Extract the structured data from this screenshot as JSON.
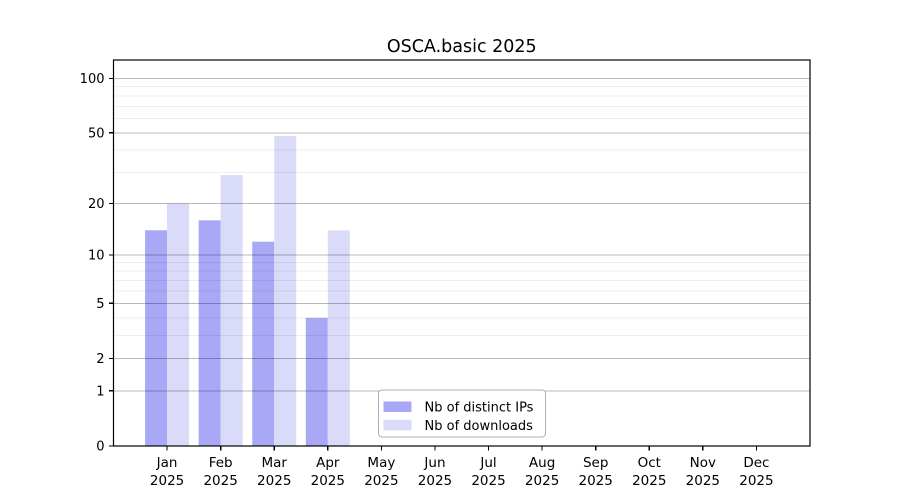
{
  "chart_data": {
    "type": "bar",
    "title": "OSCA.basic 2025",
    "categories": [
      "Jan 2025",
      "Feb 2025",
      "Mar 2025",
      "Apr 2025",
      "May 2025",
      "Jun 2025",
      "Jul 2025",
      "Aug 2025",
      "Sep 2025",
      "Oct 2025",
      "Nov 2025",
      "Dec 2025"
    ],
    "xaxis": {
      "months": [
        "Jan",
        "Feb",
        "Mar",
        "Apr",
        "May",
        "Jun",
        "Jul",
        "Aug",
        "Sep",
        "Oct",
        "Nov",
        "Dec"
      ],
      "year": "2025",
      "two_line_labels": true
    },
    "series": [
      {
        "name": "Nb of distinct IPs",
        "color": "#a8a8f6",
        "values": [
          14,
          16,
          12,
          4,
          null,
          null,
          null,
          null,
          null,
          null,
          null,
          null
        ]
      },
      {
        "name": "Nb of downloads",
        "color": "#dadaf9",
        "values": [
          20,
          29,
          48,
          14,
          null,
          null,
          null,
          null,
          null,
          null,
          null,
          null
        ]
      }
    ],
    "yaxis": {
      "scale": "log1p",
      "tick_values": [
        0,
        1,
        2,
        5,
        10,
        20,
        50,
        100
      ],
      "tick_labels": [
        "0",
        "1",
        "2",
        "5",
        "10",
        "20",
        "50",
        "100"
      ],
      "minor_gridline_values": [
        3,
        4,
        6,
        7,
        8,
        9,
        30,
        40,
        60,
        70,
        80,
        90
      ],
      "top_value": 126
    },
    "legend": {
      "position": "inside-bottom-center",
      "entries": [
        "Nb of distinct IPs",
        "Nb of downloads"
      ]
    },
    "grid": "major and minor horizontal gridlines, drawn over bars"
  },
  "colors": {
    "background": "#ffffff",
    "bar_distinct_ips": "#a8a8f6",
    "bar_downloads": "#dadaf9",
    "axis_line": "#000000",
    "grid_major": "#000000",
    "grid_major_opacity": "0.27",
    "grid_minor": "#000000",
    "grid_minor_opacity": "0.065",
    "legend_border": "#b0b0b0",
    "text": "#000000"
  }
}
